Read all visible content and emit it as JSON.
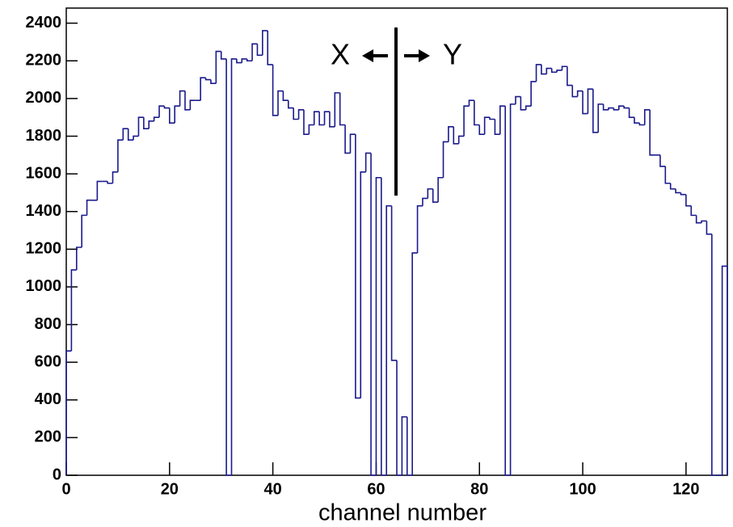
{
  "chart_data": {
    "type": "histogram",
    "x_label": "channel number",
    "annotations": [
      "X",
      "Y"
    ],
    "color": "#1a1a8c",
    "bins": [
      0,
      1,
      2,
      3,
      4,
      5,
      6,
      7,
      8,
      9,
      10,
      11,
      12,
      13,
      14,
      15,
      16,
      17,
      18,
      19,
      20,
      21,
      22,
      23,
      24,
      25,
      26,
      27,
      28,
      29,
      30,
      31,
      32,
      33,
      34,
      35,
      36,
      37,
      38,
      39,
      40,
      41,
      42,
      43,
      44,
      45,
      46,
      47,
      48,
      49,
      50,
      51,
      52,
      53,
      54,
      55,
      56,
      57,
      58,
      59,
      60,
      61,
      62,
      63,
      64,
      65,
      66,
      67,
      68,
      69,
      70,
      71,
      72,
      73,
      74,
      75,
      76,
      77,
      78,
      79,
      80,
      81,
      82,
      83,
      84,
      85,
      86,
      87,
      88,
      89,
      90,
      91,
      92,
      93,
      94,
      95,
      96,
      97,
      98,
      99,
      100,
      101,
      102,
      103,
      104,
      105,
      106,
      107,
      108,
      109,
      110,
      111,
      112,
      113,
      114,
      115,
      116,
      117,
      118,
      119,
      120,
      121,
      122,
      123,
      124,
      125,
      126,
      127,
      128
    ],
    "values": [
      660,
      1090,
      1210,
      1380,
      1460,
      1460,
      1560,
      1560,
      1550,
      1610,
      1780,
      1840,
      1780,
      1800,
      1900,
      1840,
      1880,
      1900,
      1960,
      1950,
      1870,
      1960,
      2040,
      1940,
      1990,
      1990,
      2110,
      2100,
      2080,
      2250,
      2210,
      0,
      2210,
      2190,
      2210,
      2200,
      2290,
      2230,
      2360,
      2180,
      1910,
      2040,
      1990,
      1950,
      1890,
      1940,
      1810,
      1860,
      1930,
      1860,
      1930,
      1850,
      2030,
      1860,
      1710,
      1810,
      410,
      1610,
      1710,
      0,
      1580,
      0,
      1430,
      610,
      0,
      310,
      0,
      1180,
      1430,
      1470,
      1520,
      1450,
      1580,
      1770,
      1850,
      1760,
      1800,
      1960,
      1990,
      1860,
      1810,
      1900,
      1890,
      1810,
      1960,
      0,
      1970,
      2010,
      1940,
      1960,
      2090,
      2180,
      2130,
      2160,
      2140,
      2150,
      2170,
      2070,
      2010,
      2040,
      1920,
      2050,
      1820,
      1970,
      1940,
      1950,
      1940,
      1960,
      1950,
      1900,
      1870,
      1860,
      1940,
      1700,
      1700,
      1640,
      1550,
      1520,
      1500,
      1490,
      1430,
      1380,
      1340,
      1350,
      1280,
      0,
      0,
      1110
    ],
    "xlim": [
      0,
      128
    ],
    "ylim": [
      0,
      2480
    ],
    "xticks": [
      0,
      20,
      40,
      60,
      80,
      100,
      120
    ],
    "yticks": [
      0,
      200,
      400,
      600,
      800,
      1000,
      1200,
      1400,
      1600,
      1800,
      2000,
      2200,
      2400
    ]
  }
}
